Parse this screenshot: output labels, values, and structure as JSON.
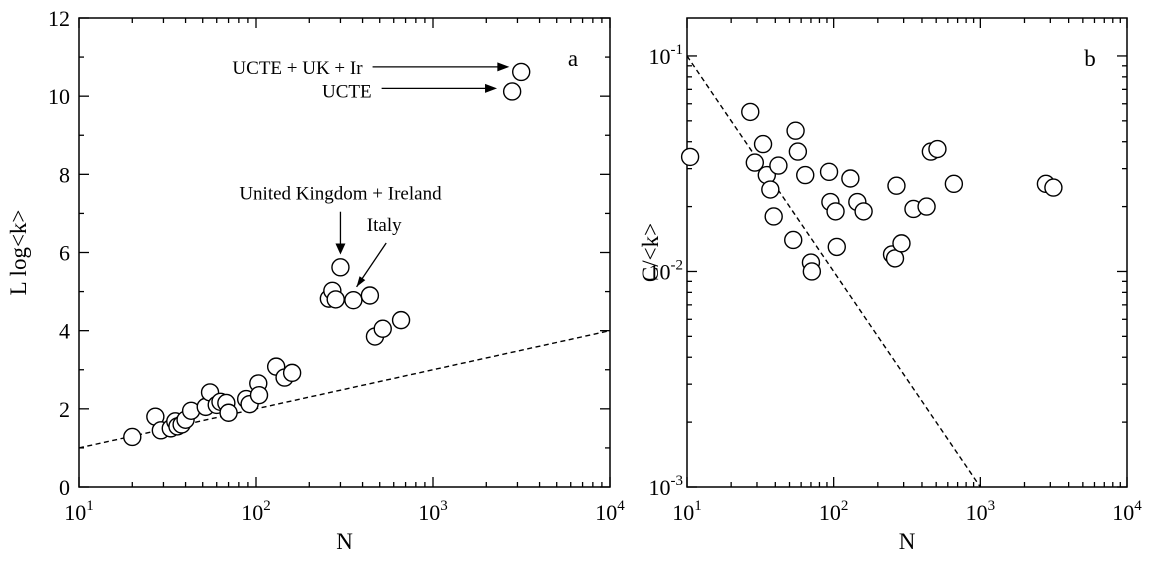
{
  "chart_data": [
    {
      "type": "scatter",
      "panel_label": "a",
      "xlabel": "N",
      "ylabel": "L log<k>",
      "xscale": "log",
      "yscale": "linear",
      "xlim": [
        10,
        10000
      ],
      "ylim": [
        0,
        12
      ],
      "xticks": [
        {
          "value": 10,
          "base": "10",
          "exp": "1"
        },
        {
          "value": 100,
          "base": "10",
          "exp": "2"
        },
        {
          "value": 1000,
          "base": "10",
          "exp": "3"
        },
        {
          "value": 10000,
          "base": "10",
          "exp": "4"
        }
      ],
      "yticks": [
        {
          "value": 0,
          "label": "0"
        },
        {
          "value": 2,
          "label": "2"
        },
        {
          "value": 4,
          "label": "4"
        },
        {
          "value": 6,
          "label": "6"
        },
        {
          "value": 8,
          "label": "8"
        },
        {
          "value": 10,
          "label": "10"
        },
        {
          "value": 12,
          "label": "12"
        }
      ],
      "grid": false,
      "points": [
        {
          "x": 20,
          "y": 1.28
        },
        {
          "x": 27,
          "y": 1.8
        },
        {
          "x": 29,
          "y": 1.45
        },
        {
          "x": 33,
          "y": 1.5
        },
        {
          "x": 35,
          "y": 1.68
        },
        {
          "x": 36,
          "y": 1.55
        },
        {
          "x": 38,
          "y": 1.6
        },
        {
          "x": 40,
          "y": 1.72
        },
        {
          "x": 43,
          "y": 1.95
        },
        {
          "x": 52,
          "y": 2.05
        },
        {
          "x": 55,
          "y": 2.42
        },
        {
          "x": 60,
          "y": 2.1
        },
        {
          "x": 63,
          "y": 2.18
        },
        {
          "x": 68,
          "y": 2.15
        },
        {
          "x": 70,
          "y": 1.9
        },
        {
          "x": 88,
          "y": 2.25
        },
        {
          "x": 92,
          "y": 2.12
        },
        {
          "x": 103,
          "y": 2.65
        },
        {
          "x": 104,
          "y": 2.35
        },
        {
          "x": 130,
          "y": 3.08
        },
        {
          "x": 145,
          "y": 2.8
        },
        {
          "x": 160,
          "y": 2.92
        },
        {
          "x": 258,
          "y": 4.82
        },
        {
          "x": 270,
          "y": 5.02
        },
        {
          "x": 282,
          "y": 4.8
        },
        {
          "x": 300,
          "y": 5.62
        },
        {
          "x": 355,
          "y": 4.78
        },
        {
          "x": 440,
          "y": 4.9
        },
        {
          "x": 470,
          "y": 3.85
        },
        {
          "x": 520,
          "y": 4.05
        },
        {
          "x": 660,
          "y": 4.27
        },
        {
          "x": 2800,
          "y": 10.12
        },
        {
          "x": 3150,
          "y": 10.62
        }
      ],
      "reference_line": {
        "style": "dashed",
        "x": [
          10,
          10000
        ],
        "y": [
          1,
          4
        ]
      },
      "annotations": [
        {
          "text": "UCTE + UK + Ir",
          "arrow": true,
          "text_x": 400,
          "text_y": 10.75,
          "target_x": 2700,
          "target_y": 10.75
        },
        {
          "text": "UCTE",
          "arrow": true,
          "text_x": 450,
          "text_y": 10.15,
          "target_x": 2300,
          "target_y": 10.2
        },
        {
          "text": "United Kingdom + Ireland",
          "arrow": true,
          "text_x": 300,
          "text_y": 7.35,
          "target_x": 300,
          "target_y": 5.95
        },
        {
          "text": "Italy",
          "arrow": true,
          "text_x": 530,
          "text_y": 6.55,
          "target_x": 370,
          "target_y": 5.12
        }
      ]
    },
    {
      "type": "scatter",
      "panel_label": "b",
      "xlabel": "N",
      "ylabel": "C/<k>",
      "xscale": "log",
      "yscale": "log",
      "xlim": [
        10,
        10000
      ],
      "ylim": [
        0.001,
        0.15
      ],
      "xticks": [
        {
          "value": 10,
          "base": "10",
          "exp": "1"
        },
        {
          "value": 100,
          "base": "10",
          "exp": "2"
        },
        {
          "value": 1000,
          "base": "10",
          "exp": "3"
        },
        {
          "value": 10000,
          "base": "10",
          "exp": "4"
        }
      ],
      "yticks": [
        {
          "value": 0.001,
          "base": "10",
          "exp": "-3"
        },
        {
          "value": 0.01,
          "base": "10",
          "exp": "-2"
        },
        {
          "value": 0.1,
          "base": "10",
          "exp": "-1"
        }
      ],
      "grid": false,
      "points": [
        {
          "x": 10.5,
          "y": 0.034
        },
        {
          "x": 27,
          "y": 0.055
        },
        {
          "x": 29,
          "y": 0.032
        },
        {
          "x": 33,
          "y": 0.039
        },
        {
          "x": 35,
          "y": 0.028
        },
        {
          "x": 37,
          "y": 0.024
        },
        {
          "x": 39,
          "y": 0.018
        },
        {
          "x": 42,
          "y": 0.031
        },
        {
          "x": 53,
          "y": 0.014
        },
        {
          "x": 55,
          "y": 0.045
        },
        {
          "x": 57,
          "y": 0.036
        },
        {
          "x": 64,
          "y": 0.028
        },
        {
          "x": 70,
          "y": 0.011
        },
        {
          "x": 71,
          "y": 0.01
        },
        {
          "x": 93,
          "y": 0.029
        },
        {
          "x": 95,
          "y": 0.021
        },
        {
          "x": 103,
          "y": 0.019
        },
        {
          "x": 105,
          "y": 0.013
        },
        {
          "x": 130,
          "y": 0.027
        },
        {
          "x": 145,
          "y": 0.021
        },
        {
          "x": 160,
          "y": 0.019
        },
        {
          "x": 250,
          "y": 0.012
        },
        {
          "x": 262,
          "y": 0.0115
        },
        {
          "x": 268,
          "y": 0.025
        },
        {
          "x": 290,
          "y": 0.0135
        },
        {
          "x": 350,
          "y": 0.0195
        },
        {
          "x": 430,
          "y": 0.02
        },
        {
          "x": 460,
          "y": 0.036
        },
        {
          "x": 510,
          "y": 0.037
        },
        {
          "x": 660,
          "y": 0.0255
        },
        {
          "x": 2800,
          "y": 0.0255
        },
        {
          "x": 3150,
          "y": 0.0245
        }
      ],
      "reference_line": {
        "style": "dashed",
        "x": [
          10,
          1000
        ],
        "y": [
          0.1,
          0.001
        ]
      }
    }
  ]
}
